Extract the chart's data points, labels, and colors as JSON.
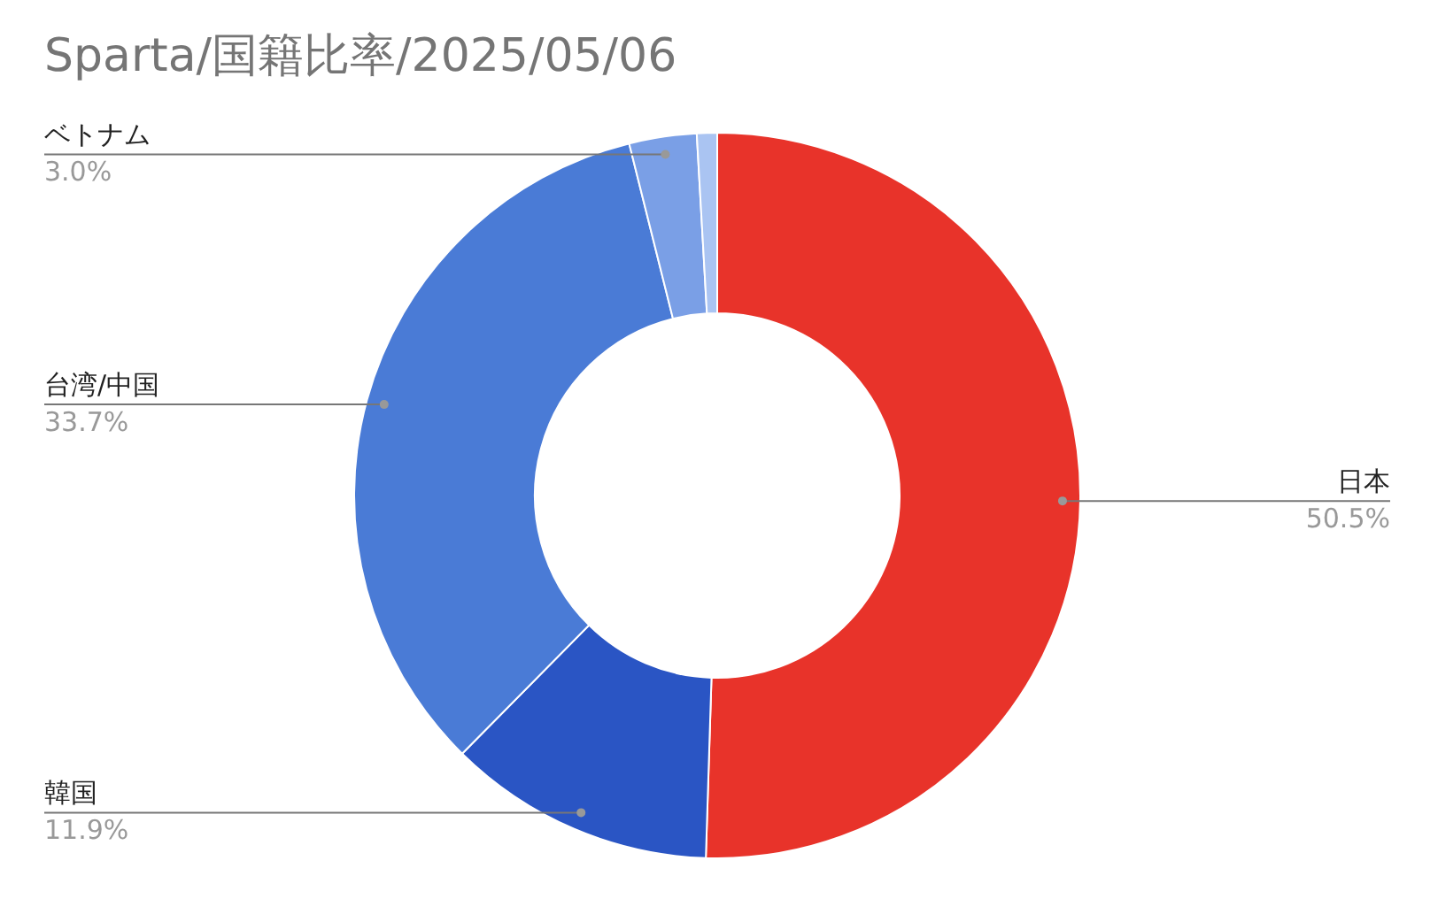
{
  "chart_data": {
    "type": "donut",
    "title": "Sparta/国籍比率/2025/05/06",
    "categories": [
      "日本",
      "韓国",
      "台湾/中国",
      "ベトナム",
      null
    ],
    "values": [
      50.5,
      11.9,
      33.7,
      3.0,
      0.9
    ],
    "value_labels": [
      "50.5%",
      "11.9%",
      "33.7%",
      "3.0%",
      null
    ],
    "colors": [
      "#e8332a",
      "#2a55c4",
      "#4a7bd6",
      "#7a9fe6",
      "#aac4f2"
    ]
  }
}
